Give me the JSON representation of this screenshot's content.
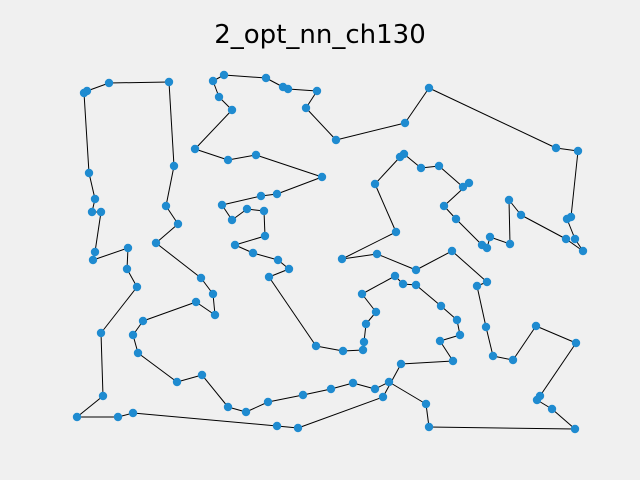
{
  "chart_data": {
    "type": "line",
    "title": "2_opt_nn_ch130",
    "xlabel": "",
    "ylabel": "",
    "axes_visible": false,
    "grid": false,
    "closed_tour": true,
    "colors": {
      "background": "#f0f0f0",
      "edge": "#000000",
      "node": "#1f8bd0"
    },
    "tour_points": [
      [
        87,
        91
      ],
      [
        109,
        83
      ],
      [
        169,
        82
      ],
      [
        174,
        166
      ],
      [
        166,
        206
      ],
      [
        178,
        224
      ],
      [
        156,
        243
      ],
      [
        201,
        278
      ],
      [
        213,
        294
      ],
      [
        215,
        315
      ],
      [
        196,
        302
      ],
      [
        143,
        321
      ],
      [
        133,
        335
      ],
      [
        138,
        353
      ],
      [
        177,
        382
      ],
      [
        202,
        375
      ],
      [
        228,
        407
      ],
      [
        246,
        412
      ],
      [
        268,
        402
      ],
      [
        303,
        395
      ],
      [
        331,
        389
      ],
      [
        353,
        383
      ],
      [
        375,
        389
      ],
      [
        389,
        382
      ],
      [
        426,
        404
      ],
      [
        429,
        427
      ],
      [
        575,
        429
      ],
      [
        552,
        409
      ],
      [
        537,
        400
      ],
      [
        540,
        396
      ],
      [
        576,
        343
      ],
      [
        536,
        326
      ],
      [
        513,
        360
      ],
      [
        493,
        356
      ],
      [
        486,
        327
      ],
      [
        477,
        286
      ],
      [
        487,
        282
      ],
      [
        452,
        251
      ],
      [
        416,
        270
      ],
      [
        377,
        254
      ],
      [
        342,
        259
      ],
      [
        396,
        232
      ],
      [
        375,
        184
      ],
      [
        400,
        157
      ],
      [
        404,
        154
      ],
      [
        421,
        168
      ],
      [
        439,
        166
      ],
      [
        463,
        187
      ],
      [
        469,
        183
      ],
      [
        444,
        206
      ],
      [
        456,
        219
      ],
      [
        482,
        245
      ],
      [
        487,
        248
      ],
      [
        490,
        237
      ],
      [
        510,
        244
      ],
      [
        509,
        200
      ],
      [
        521,
        215
      ],
      [
        566,
        239
      ],
      [
        583,
        251
      ],
      [
        575,
        239
      ],
      [
        567,
        219
      ],
      [
        571,
        217
      ],
      [
        578,
        151
      ],
      [
        556,
        148
      ],
      [
        429,
        88
      ],
      [
        405,
        123
      ],
      [
        336,
        140
      ],
      [
        306,
        108
      ],
      [
        317,
        91
      ],
      [
        288,
        89
      ],
      [
        283,
        87
      ],
      [
        266,
        78
      ],
      [
        224,
        75
      ],
      [
        213,
        81
      ],
      [
        219,
        97
      ],
      [
        232,
        110
      ],
      [
        195,
        149
      ],
      [
        228,
        160
      ],
      [
        256,
        155
      ],
      [
        322,
        177
      ],
      [
        277,
        194
      ],
      [
        261,
        196
      ],
      [
        222,
        205
      ],
      [
        232,
        220
      ],
      [
        247,
        209
      ],
      [
        264,
        211
      ],
      [
        265,
        236
      ],
      [
        235,
        245
      ],
      [
        253,
        253
      ],
      [
        278,
        260
      ],
      [
        289,
        269
      ],
      [
        269,
        277
      ],
      [
        316,
        346
      ],
      [
        343,
        351
      ],
      [
        363,
        350
      ],
      [
        364,
        342
      ],
      [
        366,
        324
      ],
      [
        376,
        312
      ],
      [
        362,
        294
      ],
      [
        395,
        276
      ],
      [
        403,
        284
      ],
      [
        416,
        285
      ],
      [
        441,
        306
      ],
      [
        457,
        320
      ],
      [
        460,
        335
      ],
      [
        440,
        341
      ],
      [
        453,
        361
      ],
      [
        401,
        364
      ],
      [
        383,
        397
      ],
      [
        298,
        428
      ],
      [
        277,
        426
      ],
      [
        133,
        413
      ],
      [
        118,
        417
      ],
      [
        77,
        417
      ],
      [
        103,
        396
      ],
      [
        101,
        333
      ],
      [
        137,
        287
      ],
      [
        127,
        269
      ],
      [
        128,
        248
      ],
      [
        93,
        260
      ],
      [
        95,
        252
      ],
      [
        101,
        212
      ],
      [
        92,
        212
      ],
      [
        95,
        199
      ],
      [
        89,
        173
      ],
      [
        84,
        93
      ]
    ]
  }
}
